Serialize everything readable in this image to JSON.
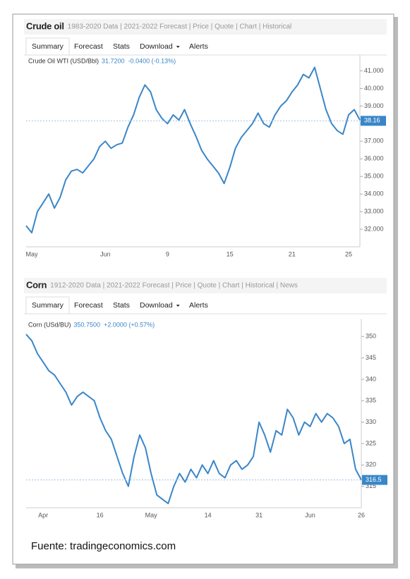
{
  "chart_data": [
    {
      "type": "line",
      "title": "Crude oil",
      "subtitle": "1983-2020 Data | 2021-2022 Forecast | Price | Quote | Chart | Historical",
      "tabs": [
        "Summary",
        "Forecast",
        "Stats",
        "Download",
        "Alerts"
      ],
      "quote": "31.7200",
      "change": "-0.0400 (-0.13%)",
      "x": [
        null,
        "May",
        null,
        null,
        null,
        null,
        null,
        null,
        null,
        null,
        null,
        null,
        null,
        null,
        "Jun",
        null,
        null,
        null,
        null,
        null,
        null,
        null,
        null,
        null,
        null,
        "9",
        null,
        null,
        null,
        null,
        null,
        null,
        null,
        null,
        null,
        null,
        "15",
        null,
        null,
        null,
        null,
        null,
        null,
        null,
        null,
        null,
        null,
        "21",
        null,
        null,
        null,
        null,
        null,
        null,
        null,
        null,
        null,
        "25",
        null,
        null
      ],
      "series": [
        {
          "name": "Crude Oil WTI (USD/Bbl)",
          "color": "#3a86c8",
          "values": [
            32.2,
            31.8,
            33.0,
            33.5,
            34.0,
            33.2,
            33.8,
            34.8,
            35.3,
            35.4,
            35.2,
            35.6,
            36.0,
            36.7,
            37.0,
            36.6,
            36.8,
            36.9,
            37.8,
            38.5,
            39.5,
            40.2,
            39.8,
            38.8,
            38.3,
            38.0,
            38.5,
            38.2,
            38.8,
            38.0,
            37.3,
            36.5,
            36.0,
            35.6,
            35.2,
            34.6,
            35.5,
            36.6,
            37.2,
            37.6,
            38.0,
            38.6,
            38.0,
            37.8,
            38.5,
            39.0,
            39.3,
            39.8,
            40.2,
            40.8,
            40.6,
            41.2,
            40.0,
            38.8,
            38.0,
            37.6,
            37.4,
            38.5,
            38.8,
            38.2
          ]
        }
      ],
      "last_value": 38.16,
      "ylim": [
        31,
        41.5
      ],
      "yticks": [
        {
          "value": 32,
          "label": "32.000"
        },
        {
          "value": 33,
          "label": "33.000"
        },
        {
          "value": 34,
          "label": "34.000"
        },
        {
          "value": 35,
          "label": "35.000"
        },
        {
          "value": 36,
          "label": "36.000"
        },
        {
          "value": 37,
          "label": "37.000"
        },
        {
          "value": 38,
          "label": "38.000"
        },
        {
          "value": 39,
          "label": "39.000"
        },
        {
          "value": 40,
          "label": "40.000"
        },
        {
          "value": 41,
          "label": "41.000"
        }
      ]
    },
    {
      "type": "line",
      "title": "Corn",
      "subtitle": "1912-2020 Data | 2021-2022 Forecast | Price | Quote | Chart | Historical | News",
      "tabs": [
        "Summary",
        "Forecast",
        "Stats",
        "Download",
        "Alerts"
      ],
      "quote": "350.7500",
      "change": "+2.0000 (+0.57%)",
      "x": [
        null,
        null,
        null,
        "Apr",
        null,
        null,
        null,
        null,
        null,
        null,
        null,
        null,
        null,
        "16",
        null,
        null,
        null,
        null,
        null,
        null,
        null,
        null,
        "May",
        null,
        null,
        null,
        null,
        null,
        null,
        null,
        null,
        null,
        "14",
        null,
        null,
        null,
        null,
        null,
        null,
        null,
        null,
        "31",
        null,
        null,
        null,
        null,
        null,
        null,
        null,
        null,
        "Jun",
        null,
        null,
        null,
        null,
        null,
        null,
        null,
        null,
        "26"
      ],
      "series": [
        {
          "name": "Corn (USd/BU)",
          "color": "#3a86c8",
          "values": [
            350.5,
            349,
            346,
            344,
            342,
            341,
            339,
            337,
            334,
            336,
            337,
            336,
            335,
            331,
            328,
            326,
            322,
            318,
            315,
            322,
            327,
            324,
            318,
            313,
            312,
            311,
            315,
            318,
            316,
            319,
            317,
            320,
            318,
            321,
            318,
            317,
            320,
            321,
            319,
            320,
            322,
            330,
            327,
            323,
            328,
            327,
            333,
            331,
            327,
            330,
            329,
            332,
            330,
            332,
            331,
            329,
            325,
            326,
            319,
            316.5
          ]
        }
      ],
      "last_value": 316.5,
      "ylim": [
        310,
        352.5
      ],
      "yticks": [
        315,
        320,
        325,
        330,
        335,
        340,
        345,
        350
      ]
    }
  ],
  "source": "Fuente: tradingeconomics.com"
}
